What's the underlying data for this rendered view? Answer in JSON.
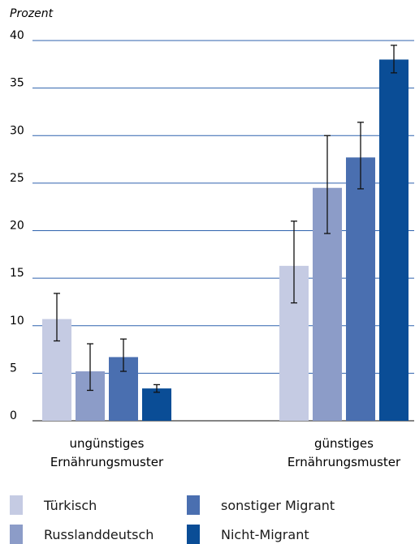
{
  "chart_data": {
    "type": "bar",
    "ylabel": "Prozent",
    "ylim": [
      0,
      40
    ],
    "yticks": [
      "0",
      "5",
      "10",
      "15",
      "20",
      "25",
      "30",
      "35",
      "40"
    ],
    "categories": [
      [
        "ungünstiges",
        "Ernährungsmuster"
      ],
      [
        "günstiges",
        "Ernährungsmuster"
      ]
    ],
    "series": [
      {
        "name": "Türkisch",
        "color": "#c5cbe3",
        "values": [
          10.7,
          16.3
        ],
        "err_low": [
          8.4,
          12.4
        ],
        "err_high": [
          13.4,
          21.0
        ]
      },
      {
        "name": "Russlanddeutsch",
        "color": "#8c9cc8",
        "values": [
          5.2,
          24.5
        ],
        "err_low": [
          3.2,
          19.7
        ],
        "err_high": [
          8.1,
          30.0
        ]
      },
      {
        "name": "sonstiger Migrant",
        "color": "#4a6fb0",
        "values": [
          6.7,
          27.7
        ],
        "err_low": [
          5.2,
          24.4
        ],
        "err_high": [
          8.6,
          31.4
        ]
      },
      {
        "name": "Nicht-Migrant",
        "color": "#0a4d96",
        "values": [
          3.4,
          38.0
        ],
        "err_low": [
          3.0,
          36.6
        ],
        "err_high": [
          3.8,
          39.5
        ]
      }
    ],
    "grid": true,
    "legend_position": "bottom"
  }
}
